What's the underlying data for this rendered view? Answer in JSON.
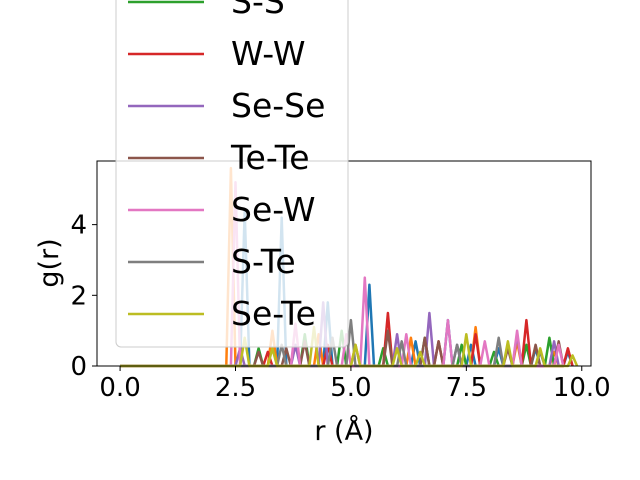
{
  "chart_data": {
    "type": "line",
    "xlabel": "r (Å)",
    "ylabel": "g(r)",
    "xlim": [
      -0.5,
      10.2
    ],
    "ylim": [
      0,
      5.8
    ],
    "xticks": [
      {
        "value": 0.0,
        "label": "0.0"
      },
      {
        "value": 2.5,
        "label": "2.5"
      },
      {
        "value": 5.0,
        "label": "5.0"
      },
      {
        "value": 7.5,
        "label": "7.5"
      },
      {
        "value": 10.0,
        "label": "10.0"
      }
    ],
    "yticks": [
      {
        "value": 0,
        "label": "0"
      },
      {
        "value": 2,
        "label": "2"
      },
      {
        "value": 4,
        "label": "4"
      }
    ],
    "legend_placement": "upper-left, overlapping plot top",
    "grid": false,
    "series": [
      {
        "name": "",
        "color": "#1f77b4",
        "x": [
          0,
          2.2,
          2.6,
          2.7,
          2.8,
          3.4,
          3.5,
          3.6,
          4.4,
          4.5,
          4.6,
          5.3,
          5.4,
          5.5,
          6.3,
          6.4,
          6.5,
          7.0,
          7.1,
          7.2,
          7.5,
          7.6,
          7.7,
          8.1,
          8.2,
          8.3,
          8.9,
          9.0,
          9.1,
          9.6,
          9.7,
          9.8
        ],
        "y": [
          0,
          0,
          0,
          4.4,
          0,
          0,
          4.2,
          0,
          0,
          1.8,
          0,
          0,
          2.3,
          0,
          0,
          0.7,
          0,
          0,
          1.3,
          0,
          0,
          0.6,
          0,
          0,
          0.5,
          0,
          0,
          0.5,
          0,
          0,
          0.4,
          0
        ]
      },
      {
        "name": "",
        "color": "#ff7f0e",
        "x": [
          0,
          2.2,
          2.3,
          2.4,
          2.5,
          3.2,
          3.3,
          3.4,
          4.2,
          4.3,
          4.4,
          5.0,
          5.1,
          5.2,
          6.2,
          6.3,
          6.4,
          7.6,
          7.7,
          7.8,
          8.5,
          8.6,
          8.7,
          9.3,
          9.4,
          9.5
        ],
        "y": [
          0,
          0,
          0,
          5.6,
          0,
          0,
          1.0,
          0,
          0,
          0.9,
          0,
          0,
          0.6,
          0,
          0,
          0.8,
          0,
          0,
          1.1,
          0,
          0,
          0.7,
          0,
          0,
          0.4,
          0
        ]
      },
      {
        "name": "S-S",
        "color": "#2ca02c",
        "x": [
          0,
          2.9,
          3.0,
          3.1,
          3.9,
          4.0,
          4.1,
          4.7,
          4.8,
          4.9,
          5.6,
          5.7,
          5.8,
          6.5,
          6.6,
          6.7,
          7.3,
          7.4,
          7.5,
          8.0,
          8.1,
          8.2,
          8.7,
          8.8,
          8.9,
          9.2,
          9.3,
          9.4
        ],
        "y": [
          0,
          0,
          0.5,
          0,
          0,
          0.9,
          0,
          0,
          1.0,
          0,
          0,
          0.5,
          0,
          0,
          0.8,
          0,
          0,
          0.6,
          0,
          0,
          0.4,
          0,
          0,
          0.6,
          0,
          0,
          0.8,
          0
        ]
      },
      {
        "name": "W-W",
        "color": "#d62728",
        "x": [
          0,
          3.1,
          3.2,
          3.3,
          4.4,
          4.5,
          4.6,
          5.7,
          5.8,
          5.9,
          6.8,
          6.9,
          7.0,
          7.6,
          7.7,
          7.8,
          8.7,
          8.8,
          8.9,
          9.6,
          9.7,
          9.8
        ],
        "y": [
          0,
          0,
          0.4,
          0,
          0,
          0.6,
          0,
          0,
          1.5,
          0,
          0,
          0.7,
          0,
          0,
          0.9,
          0,
          0,
          1.3,
          0,
          0,
          0.5,
          0
        ]
      },
      {
        "name": "Se-Se",
        "color": "#9467bd",
        "x": [
          0,
          2.5,
          2.6,
          2.7,
          3.7,
          3.8,
          3.9,
          4.3,
          4.4,
          4.5,
          5.9,
          6.0,
          6.1,
          6.6,
          6.7,
          6.8,
          7.2,
          7.3,
          7.4,
          8.5,
          8.6,
          8.7,
          9.3,
          9.4,
          9.5
        ],
        "y": [
          0,
          0,
          0.5,
          0,
          0,
          0.6,
          0,
          0,
          1.8,
          0,
          0,
          0.9,
          0,
          0,
          1.5,
          0,
          0,
          0.6,
          0,
          0,
          0.9,
          0,
          0,
          0.7,
          0
        ]
      },
      {
        "name": "Te-Te",
        "color": "#8c564b",
        "x": [
          0,
          2.9,
          3.0,
          3.1,
          3.5,
          3.6,
          3.7,
          3.9,
          4.0,
          4.1,
          5.7,
          5.8,
          5.9,
          6.5,
          6.6,
          6.7,
          6.8,
          6.9,
          7.0,
          8.3,
          8.4,
          8.5,
          8.9,
          9.0,
          9.1,
          9.4,
          9.5,
          9.6
        ],
        "y": [
          0,
          0,
          0.4,
          0,
          0,
          0.5,
          0,
          0,
          0.7,
          0,
          0,
          1.0,
          0,
          0,
          0.8,
          0,
          0,
          0.7,
          0,
          0,
          0.5,
          0,
          0,
          0.6,
          0,
          0,
          0.7,
          0
        ]
      },
      {
        "name": "Se-W",
        "color": "#e377c2",
        "x": [
          0,
          2.4,
          2.5,
          2.6,
          3.7,
          3.8,
          3.9,
          4.8,
          4.9,
          5.0,
          5.2,
          5.3,
          5.4,
          6.1,
          6.2,
          6.3,
          7.0,
          7.1,
          7.2,
          7.8,
          7.9,
          8.0,
          8.5,
          8.6,
          8.7,
          9.4,
          9.5,
          9.6
        ],
        "y": [
          0,
          0,
          5.2,
          0,
          0,
          1.2,
          0,
          0,
          0.9,
          0,
          0,
          2.5,
          0,
          0,
          0.9,
          0,
          0,
          1.3,
          0,
          0,
          0.7,
          0,
          0,
          1.0,
          0,
          0,
          0.6,
          0
        ]
      },
      {
        "name": "S-Te",
        "color": "#7f7f7f",
        "x": [
          0,
          3.4,
          3.5,
          3.6,
          4.5,
          4.6,
          4.7,
          4.9,
          5.0,
          5.1,
          6.0,
          6.1,
          6.2,
          7.2,
          7.3,
          7.4,
          8.1,
          8.2,
          8.3,
          9.0,
          9.1,
          9.2
        ],
        "y": [
          0,
          0,
          0.6,
          0,
          0,
          0.8,
          0,
          0,
          1.3,
          0,
          0,
          0.7,
          0,
          0,
          0.6,
          0,
          0,
          0.8,
          0,
          0,
          0.4,
          0
        ]
      },
      {
        "name": "Se-Te",
        "color": "#bcbd22",
        "x": [
          0,
          2.6,
          2.7,
          2.8,
          3.2,
          3.3,
          3.4,
          4.1,
          4.2,
          4.3,
          5.0,
          5.1,
          5.2,
          5.9,
          6.0,
          6.1,
          6.4,
          6.5,
          6.6,
          7.4,
          7.5,
          7.6,
          8.3,
          8.4,
          8.5,
          9.0,
          9.1,
          9.2,
          9.7,
          9.8,
          9.9
        ],
        "y": [
          0,
          0,
          0.8,
          0,
          0,
          0.5,
          0,
          0,
          1.1,
          0,
          0,
          0.6,
          0,
          0,
          0.5,
          0,
          0,
          0.4,
          0,
          0,
          0.9,
          0,
          0,
          0.7,
          0,
          0,
          0.5,
          0,
          0,
          0.3,
          0
        ]
      }
    ]
  }
}
